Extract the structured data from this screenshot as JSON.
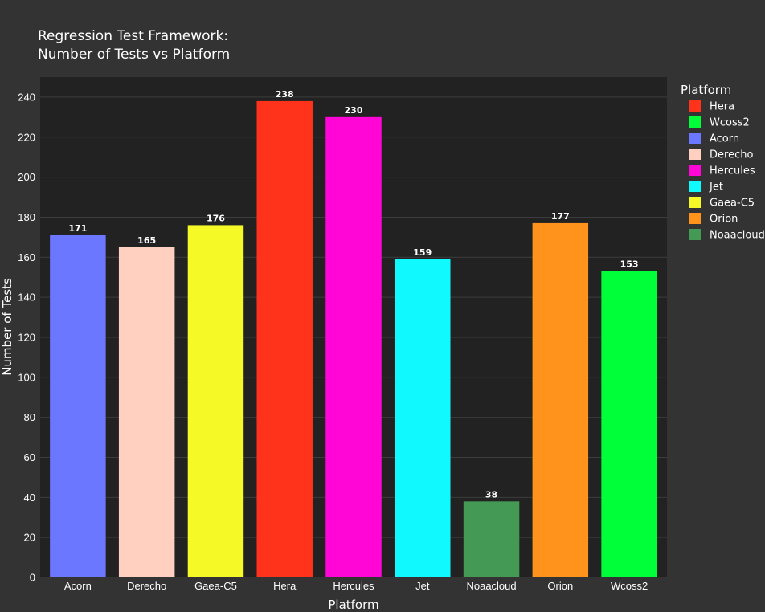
{
  "chart_data": {
    "type": "bar",
    "title_line1": "Regression Test Framework:",
    "title_line2": "Number of Tests vs Platform",
    "xlabel": "Platform",
    "ylabel": "Number of Tests",
    "ylim": [
      0,
      250
    ],
    "yticks": [
      0,
      20,
      40,
      60,
      80,
      100,
      120,
      140,
      160,
      180,
      200,
      220,
      240
    ],
    "grid": true,
    "legend_title": "Platform",
    "legend_position": "right",
    "categories": [
      "Acorn",
      "Derecho",
      "Gaea-C5",
      "Hera",
      "Hercules",
      "Jet",
      "Noaacloud",
      "Orion",
      "Wcoss2"
    ],
    "values": [
      171,
      165,
      176,
      238,
      230,
      159,
      38,
      177,
      153
    ],
    "colors": [
      "#6b77fe",
      "#ffd0bf",
      "#f5f926",
      "#ff331c",
      "#ff05d6",
      "#10f9ff",
      "#449a54",
      "#ff931b",
      "#00ff38"
    ],
    "legend": [
      {
        "name": "Hera",
        "color": "#ff331c"
      },
      {
        "name": "Wcoss2",
        "color": "#00ff38"
      },
      {
        "name": "Acorn",
        "color": "#6b77fe"
      },
      {
        "name": "Derecho",
        "color": "#ffd0bf"
      },
      {
        "name": "Hercules",
        "color": "#ff05d6"
      },
      {
        "name": "Jet",
        "color": "#10f9ff"
      },
      {
        "name": "Gaea-C5",
        "color": "#f5f926"
      },
      {
        "name": "Orion",
        "color": "#ff931b"
      },
      {
        "name": "Noaacloud",
        "color": "#449a54"
      }
    ],
    "colors_meta": {
      "background": "#333333",
      "plot_background": "#222222",
      "text": "#ffffff"
    }
  }
}
